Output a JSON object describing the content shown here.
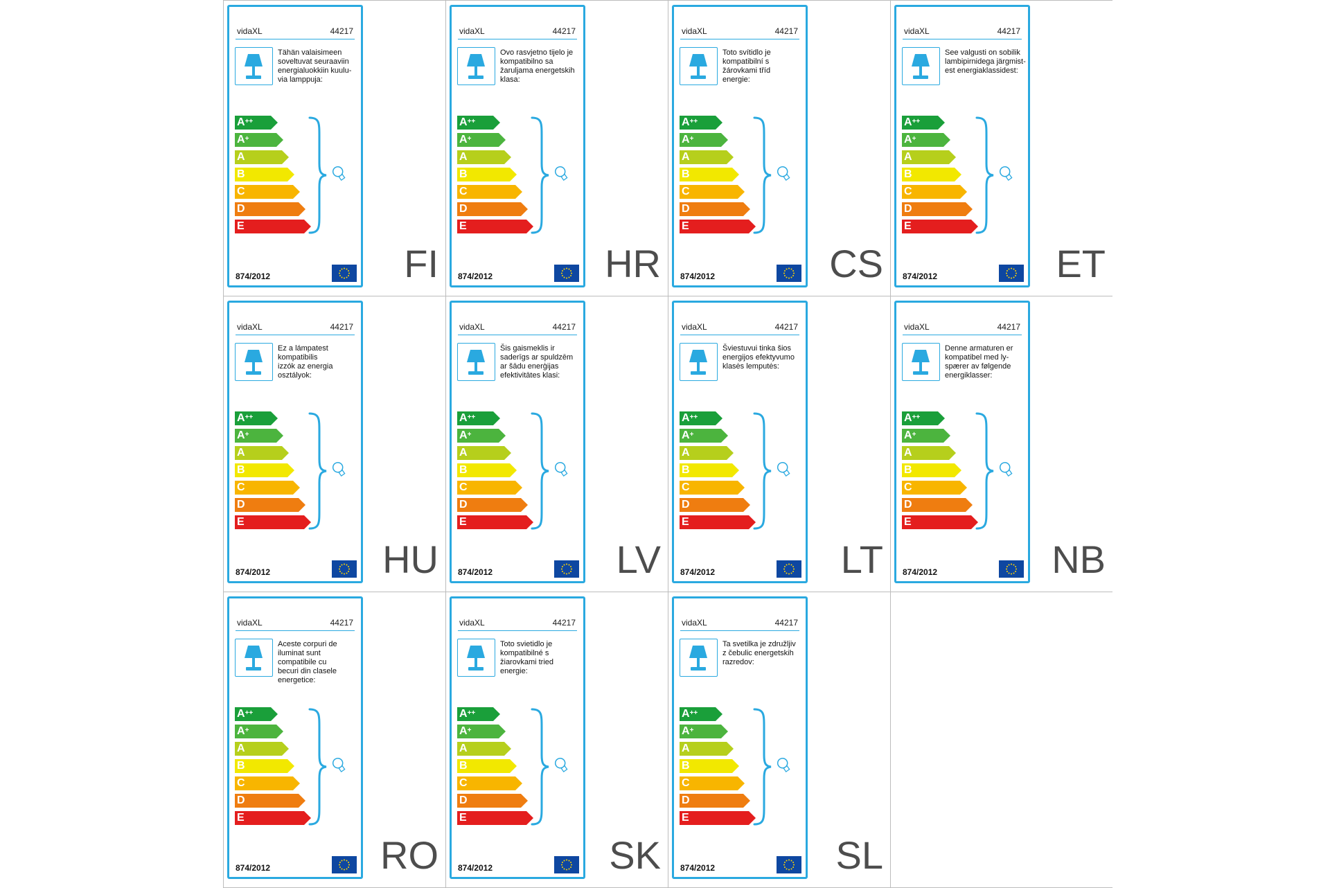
{
  "brand": "vidaXL",
  "product_number": "44217",
  "regulation": "874/2012",
  "energy_classes": [
    {
      "letter": "A",
      "sup": "++",
      "color": "#1a9f3a"
    },
    {
      "letter": "A",
      "sup": "+",
      "color": "#4cb43e"
    },
    {
      "letter": "A",
      "sup": "",
      "color": "#b6cf1c"
    },
    {
      "letter": "B",
      "sup": "",
      "color": "#f2e800"
    },
    {
      "letter": "C",
      "sup": "",
      "color": "#f8b500"
    },
    {
      "letter": "D",
      "sup": "",
      "color": "#ef7d10"
    },
    {
      "letter": "E",
      "sup": "",
      "color": "#e41e1e"
    }
  ],
  "colors": {
    "frame": "#2aa9e0",
    "eu_flag": "#0e47a1",
    "eu_stars": "#ffd400"
  },
  "icons": {
    "lamp": "table-lamp-icon",
    "bulb": "light-bulb-icon",
    "flag": "eu-flag-icon"
  },
  "labels": [
    {
      "code": "FI",
      "text": "Tähän valaisimeen\nsoveltuvat seuraaviin\nenergialuokkiin kuulu-\nvia lamppuja:"
    },
    {
      "code": "HR",
      "text": "Ovo rasvjetno tijelo je\nkompatibilno sa\nžaruljama energetskih\nklasa:"
    },
    {
      "code": "CS",
      "text": "Toto svítidlo je\nkompatibilní s\nžárovkami tříd\nenergie:"
    },
    {
      "code": "ET",
      "text": "See valgusti on sobilik\nlambipirnidega järgmist-\nest energiaklassidest:"
    },
    {
      "code": "HU",
      "text": "Ez a lámpatest\nkompatibilis\nizzók az energia\nosztályok:"
    },
    {
      "code": "LV",
      "text": "Šis gaismeklis ir\nsaderīgs ar spuldzēm\nar šādu enerģijas\nefektivitātes klasi:"
    },
    {
      "code": "LT",
      "text": "Šviestuvui tinka šios\nenergijos efektyvumo\nklasės lemputės:"
    },
    {
      "code": "NB",
      "text": "Denne armaturen er\nkompatibel med ly-\nspærer av følgende\nenergiklasser:"
    },
    {
      "code": "RO",
      "text": "Aceste corpuri de\niluminat sunt\ncompatibile cu\nbecuri din clasele\nenergetice:"
    },
    {
      "code": "SK",
      "text": "Toto svietidlo je\nkompatibilné s\nžiarovkami tried\nenergie:"
    },
    {
      "code": "SL",
      "text": "Ta svetilka je združljiv\nz čebulic energetskih\nrazredov:"
    }
  ]
}
